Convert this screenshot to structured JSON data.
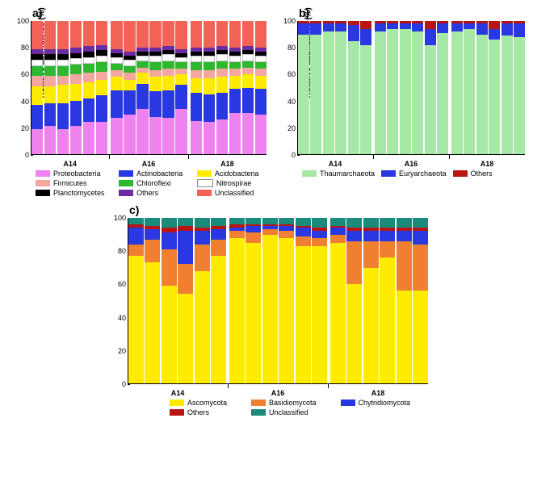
{
  "ylabel": "Relative abundance (%)",
  "yticks": [
    0,
    20,
    40,
    60,
    80,
    100
  ],
  "ylim": [
    0,
    100
  ],
  "groups": [
    "A14",
    "A16",
    "A18"
  ],
  "panels": {
    "a": {
      "label": "a)",
      "colors": {
        "Proteobacteria": "#ee82ee",
        "Actinobacteria": "#2938e0",
        "Acidobacteria": "#ffeb00",
        "Firmicutes": "#f4a6a0",
        "Chloroflexi": "#2eb82e",
        "Nitrospirae": "#ffffff",
        "Planctomycetes": "#000000",
        "Others": "#6a2ca0",
        "Unclassified": "#f26257"
      },
      "legend_order": [
        "Proteobacteria",
        "Actinobacteria",
        "Acidobacteria",
        "Firmicutes",
        "Chloroflexi",
        "Nitrospirae",
        "Planctomycetes",
        "Others",
        "Unclassified"
      ],
      "stack_order": [
        "Proteobacteria",
        "Actinobacteria",
        "Acidobacteria",
        "Firmicutes",
        "Chloroflexi",
        "Nitrospirae",
        "Planctomycetes",
        "Others",
        "Unclassified"
      ],
      "bars": [
        [
          19,
          18,
          14,
          8,
          7,
          5,
          4,
          4,
          21
        ],
        [
          21,
          17,
          13,
          8,
          7,
          5,
          4,
          4,
          21
        ],
        [
          19,
          19,
          14,
          7,
          7,
          5,
          4,
          4,
          21
        ],
        [
          21,
          19,
          13,
          7,
          7,
          5,
          4,
          4,
          20
        ],
        [
          24,
          18,
          12,
          7,
          7,
          5,
          4,
          4,
          19
        ],
        [
          24,
          20,
          12,
          6,
          7,
          5,
          4,
          4,
          18
        ],
        [
          27,
          21,
          10,
          5,
          5,
          5,
          3,
          3,
          21
        ],
        [
          30,
          18,
          8,
          5,
          5,
          5,
          3,
          3,
          23
        ],
        [
          34,
          19,
          8,
          4,
          5,
          4,
          3,
          3,
          20
        ],
        [
          28,
          19,
          11,
          5,
          6,
          5,
          3,
          3,
          20
        ],
        [
          27,
          21,
          11,
          5,
          6,
          5,
          3,
          3,
          19
        ],
        [
          34,
          18,
          8,
          4,
          5,
          4,
          3,
          3,
          21
        ],
        [
          25,
          21,
          11,
          6,
          6,
          5,
          3,
          3,
          20
        ],
        [
          24,
          21,
          12,
          6,
          6,
          5,
          3,
          3,
          20
        ],
        [
          26,
          20,
          12,
          6,
          6,
          5,
          3,
          3,
          19
        ],
        [
          31,
          18,
          10,
          5,
          5,
          5,
          3,
          3,
          20
        ],
        [
          31,
          19,
          10,
          5,
          5,
          5,
          3,
          3,
          19
        ],
        [
          30,
          19,
          10,
          5,
          5,
          5,
          3,
          3,
          20
        ]
      ]
    },
    "b": {
      "label": "b)",
      "colors": {
        "Thaumarchaeota": "#a6e8a6",
        "Euryarchaeota": "#2938e0",
        "Others": "#b81414"
      },
      "legend_order": [
        "Thaumarchaeota",
        "Euryarchaeota",
        "Others"
      ],
      "stack_order": [
        "Thaumarchaeota",
        "Euryarchaeota",
        "Others"
      ],
      "bars": [
        [
          90,
          8,
          2
        ],
        [
          90,
          8,
          2
        ],
        [
          92,
          6,
          2
        ],
        [
          92,
          6,
          2
        ],
        [
          85,
          12,
          3
        ],
        [
          82,
          12,
          6
        ],
        [
          92,
          6,
          2
        ],
        [
          94,
          4,
          2
        ],
        [
          94,
          4,
          2
        ],
        [
          92,
          6,
          2
        ],
        [
          82,
          12,
          6
        ],
        [
          91,
          7,
          2
        ],
        [
          92,
          6,
          2
        ],
        [
          94,
          4,
          2
        ],
        [
          90,
          8,
          2
        ],
        [
          86,
          8,
          6
        ],
        [
          89,
          9,
          2
        ],
        [
          88,
          10,
          2
        ]
      ]
    },
    "c": {
      "label": "c)",
      "colors": {
        "Ascomycota": "#ffeb00",
        "Basidiomycota": "#f08030",
        "Chytridiomycota": "#2938e0",
        "Others": "#b81414",
        "Unclassified": "#1a8a7a"
      },
      "legend_order": [
        "Ascomycota",
        "Basidiomycota",
        "Chytridiomycota",
        "Others",
        "Unclassified"
      ],
      "stack_order": [
        "Ascomycota",
        "Basidiomycota",
        "Chytridiomycota",
        "Others",
        "Unclassified"
      ],
      "bars": [
        [
          77,
          7,
          10,
          2,
          4
        ],
        [
          73,
          14,
          6,
          2,
          5
        ],
        [
          59,
          22,
          10,
          3,
          6
        ],
        [
          54,
          18,
          20,
          3,
          5
        ],
        [
          68,
          16,
          8,
          2,
          6
        ],
        [
          77,
          10,
          6,
          2,
          5
        ],
        [
          88,
          4,
          2,
          2,
          4
        ],
        [
          85,
          6,
          4,
          1,
          4
        ],
        [
          90,
          3,
          2,
          1,
          4
        ],
        [
          88,
          4,
          3,
          1,
          4
        ],
        [
          83,
          6,
          5,
          1,
          5
        ],
        [
          83,
          5,
          4,
          2,
          6
        ],
        [
          85,
          5,
          4,
          1,
          5
        ],
        [
          60,
          26,
          6,
          2,
          6
        ],
        [
          70,
          16,
          6,
          2,
          6
        ],
        [
          76,
          10,
          6,
          2,
          6
        ],
        [
          56,
          30,
          6,
          2,
          6
        ],
        [
          56,
          28,
          8,
          2,
          6
        ]
      ]
    }
  }
}
